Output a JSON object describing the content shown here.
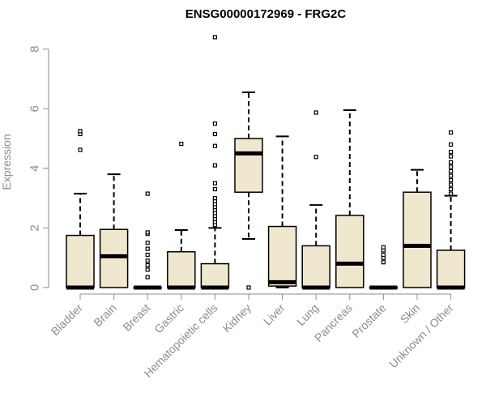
{
  "chart_data": {
    "type": "boxplot",
    "title": "ENSG00000172969 - FRG2C",
    "ylabel": "Expression",
    "xlabel": "",
    "ylim": [
      0,
      8
    ],
    "yticks": [
      0,
      2,
      4,
      6,
      8
    ],
    "colors": {
      "box_fill": "#efe8cf",
      "stroke": "#000000",
      "axis": "#8c8c8c"
    },
    "categories": [
      "Bladder",
      "Brain",
      "Breast",
      "Gastric",
      "Hematopoietic cells",
      "Kidney",
      "Liver",
      "Lung",
      "Pancreas",
      "Prostate",
      "Skin",
      "Unknown / Other"
    ],
    "boxes": [
      {
        "q1": 0,
        "median": 0,
        "q3": 1.75,
        "whisker_low": 0,
        "whisker_high": 3.15,
        "outliers": [
          4.62,
          5.15,
          5.25
        ]
      },
      {
        "q1": 0,
        "median": 1.05,
        "q3": 1.95,
        "whisker_low": 0,
        "whisker_high": 3.8,
        "outliers": []
      },
      {
        "q1": 0,
        "median": 0,
        "q3": 0,
        "whisker_low": 0,
        "whisker_high": 0,
        "outliers": [
          0.35,
          0.6,
          0.75,
          0.9,
          1.1,
          1.3,
          1.5,
          1.8,
          1.85,
          3.15
        ]
      },
      {
        "q1": 0,
        "median": 0,
        "q3": 1.2,
        "whisker_low": 0,
        "whisker_high": 1.93,
        "outliers": [
          4.82
        ]
      },
      {
        "q1": 0,
        "median": 0,
        "q3": 0.8,
        "whisker_low": 0,
        "whisker_high": 2.0,
        "outliers": [
          2.1,
          2.2,
          2.3,
          2.4,
          2.5,
          2.6,
          2.7,
          2.8,
          2.9,
          3.0,
          3.3,
          3.5,
          4.1,
          4.75,
          5.15,
          5.5,
          8.4
        ]
      },
      {
        "q1": 3.2,
        "median": 4.5,
        "q3": 5.0,
        "whisker_low": 1.63,
        "whisker_high": 6.55,
        "outliers": [
          0
        ]
      },
      {
        "q1": 0.05,
        "median": 0.18,
        "q3": 2.05,
        "whisker_low": 0,
        "whisker_high": 5.07,
        "outliers": []
      },
      {
        "q1": 0,
        "median": 0,
        "q3": 1.4,
        "whisker_low": 0,
        "whisker_high": 2.77,
        "outliers": [
          4.38,
          5.87
        ]
      },
      {
        "q1": 0,
        "median": 0.8,
        "q3": 2.42,
        "whisker_low": 0,
        "whisker_high": 5.95,
        "outliers": []
      },
      {
        "q1": 0,
        "median": 0,
        "q3": 0,
        "whisker_low": 0,
        "whisker_high": 0,
        "outliers": [
          0.85,
          1.0,
          1.1,
          1.25,
          1.35
        ]
      },
      {
        "q1": 0,
        "median": 1.4,
        "q3": 3.2,
        "whisker_low": 0,
        "whisker_high": 3.95,
        "outliers": []
      },
      {
        "q1": 0,
        "median": 0,
        "q3": 1.25,
        "whisker_low": 0,
        "whisker_high": 3.08,
        "outliers": [
          3.15,
          3.3,
          3.45,
          3.6,
          3.75,
          3.9,
          4.05,
          4.2,
          4.4,
          4.55,
          4.8,
          5.2
        ]
      }
    ]
  }
}
